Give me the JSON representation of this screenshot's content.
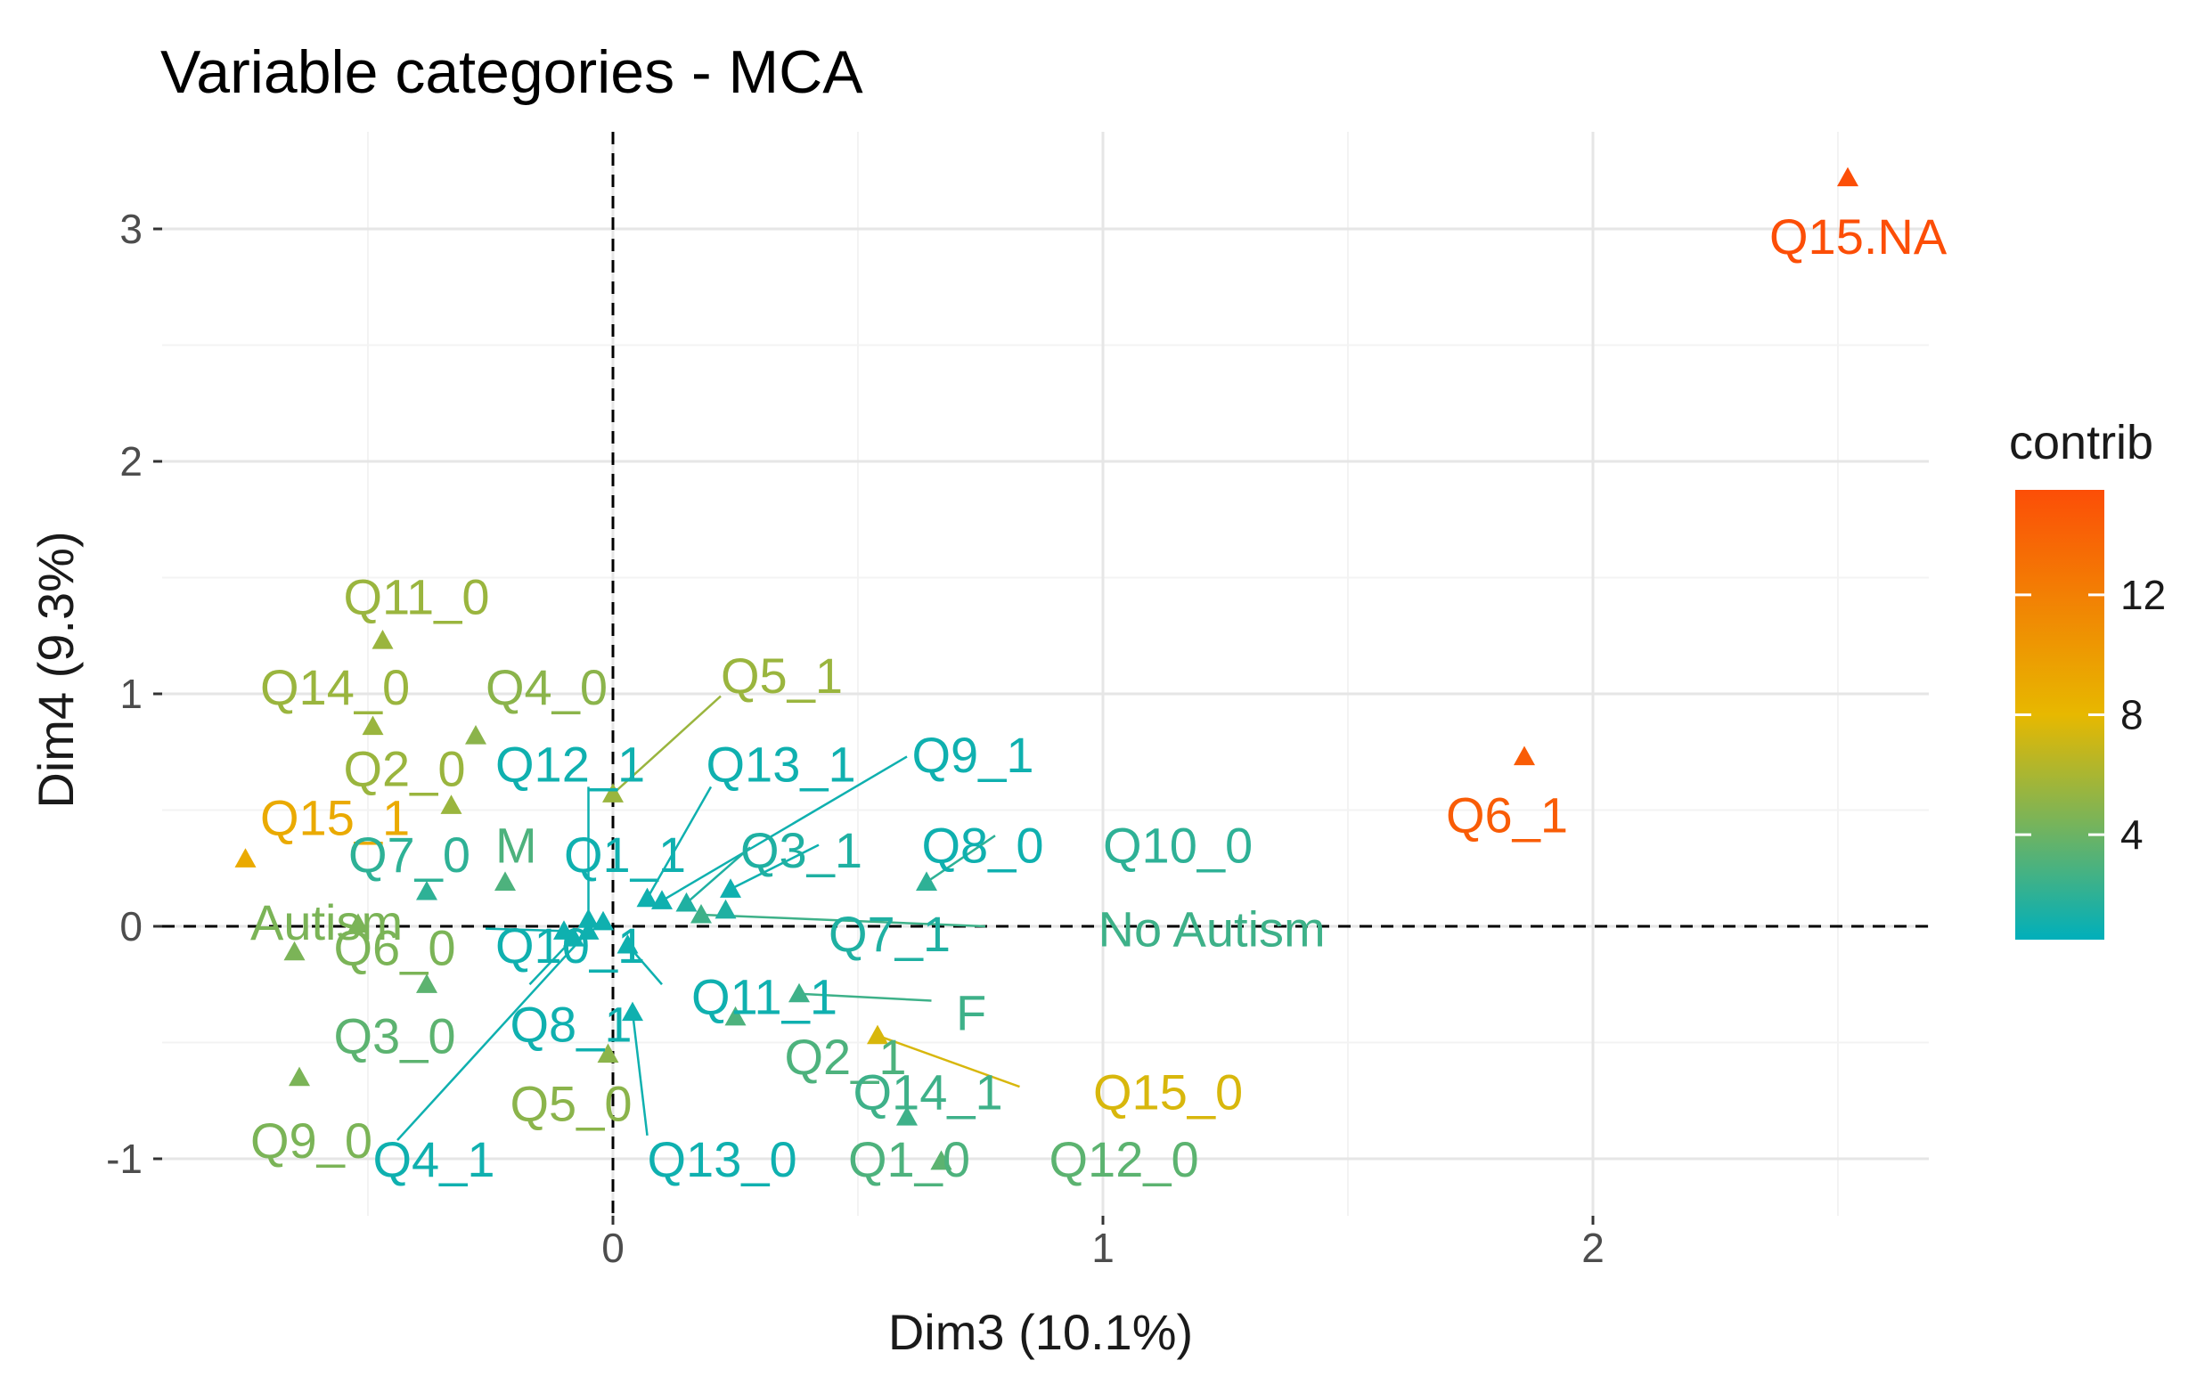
{
  "chart_data": {
    "type": "scatter",
    "title": "Variable categories - MCA",
    "xlabel": "Dim3 (10.1%)",
    "ylabel": "Dim4 (9.3%)",
    "xlim": [
      -0.92,
      2.7
    ],
    "ylim": [
      -1.3,
      3.45
    ],
    "x_ticks": [
      0,
      1,
      2
    ],
    "y_ticks": [
      -1,
      0,
      1,
      2,
      3
    ],
    "grid": true,
    "reference_lines": {
      "x": 0,
      "y": 0
    },
    "legend": {
      "title": "contrib",
      "position": "right",
      "min": 0.5,
      "max": 15.5,
      "ticks": [
        4,
        8,
        12
      ]
    },
    "points": [
      {
        "name": "Q15.NA",
        "x": 2.52,
        "y": 3.22,
        "contrib": 15.5,
        "lx": 2.36,
        "ly": 2.97
      },
      {
        "name": "Q6_1",
        "x": 1.86,
        "y": 0.73,
        "contrib": 14.5,
        "lx": 1.7,
        "ly": 0.48
      },
      {
        "name": "Q11_0",
        "x": -0.47,
        "y": 1.23,
        "contrib": 5.5,
        "lx": -0.55,
        "ly": 1.42
      },
      {
        "name": "Q14_0",
        "x": -0.49,
        "y": 0.86,
        "contrib": 5.5,
        "lx": -0.72,
        "ly": 1.03
      },
      {
        "name": "Q4_0",
        "x": -0.28,
        "y": 0.82,
        "contrib": 5.0,
        "lx": -0.26,
        "ly": 1.03
      },
      {
        "name": "Q5_1",
        "x": 0.0,
        "y": 0.57,
        "contrib": 5.5,
        "lx": 0.22,
        "ly": 1.08
      },
      {
        "name": "Q2_0",
        "x": -0.33,
        "y": 0.52,
        "contrib": 5.5,
        "lx": -0.55,
        "ly": 0.68
      },
      {
        "name": "Q15_1",
        "x": -0.75,
        "y": 0.29,
        "contrib": 9.0,
        "lx": -0.72,
        "ly": 0.47
      },
      {
        "name": "Q7_0",
        "x": -0.38,
        "y": 0.15,
        "contrib": 2.0,
        "lx": -0.54,
        "ly": 0.31
      },
      {
        "name": "M",
        "x": -0.22,
        "y": 0.19,
        "contrib": 3.0,
        "lx": -0.24,
        "ly": 0.35
      },
      {
        "name": "Autism",
        "x": -0.52,
        "y": 0.01,
        "contrib": 4.5,
        "lx": -0.74,
        "ly": 0.02
      },
      {
        "name": "Q6_0",
        "x": -0.65,
        "y": -0.11,
        "contrib": 4.5,
        "lx": -0.57,
        "ly": -0.09
      },
      {
        "name": "Q3_0",
        "x": -0.38,
        "y": -0.25,
        "contrib": 3.5,
        "lx": -0.57,
        "ly": -0.47
      },
      {
        "name": "Q9_0",
        "x": -0.64,
        "y": -0.65,
        "contrib": 4.5,
        "lx": -0.74,
        "ly": -0.92
      },
      {
        "name": "Q12_1",
        "x": -0.05,
        "y": 0.03,
        "contrib": 1.0,
        "lx": -0.24,
        "ly": 0.7
      },
      {
        "name": "Q13_1",
        "x": 0.07,
        "y": 0.12,
        "contrib": 1.0,
        "lx": 0.19,
        "ly": 0.7
      },
      {
        "name": "Q9_1",
        "x": 0.1,
        "y": 0.11,
        "contrib": 1.0,
        "lx": 0.61,
        "ly": 0.74
      },
      {
        "name": "Q1_1",
        "x": -0.02,
        "y": 0.02,
        "contrib": 1.0,
        "lx": -0.1,
        "ly": 0.31
      },
      {
        "name": "Q3_1",
        "x": 0.15,
        "y": 0.1,
        "contrib": 1.5,
        "lx": 0.26,
        "ly": 0.33
      },
      {
        "name": "Q8_0",
        "x": 0.24,
        "y": 0.16,
        "contrib": 1.0,
        "lx": 0.63,
        "ly": 0.35
      },
      {
        "name": "Q10_0",
        "x": 0.64,
        "y": 0.19,
        "contrib": 2.0,
        "lx": 1.0,
        "ly": 0.35
      },
      {
        "name": "Q7_1",
        "x": 0.23,
        "y": 0.07,
        "contrib": 1.5,
        "lx": 0.44,
        "ly": -0.03
      },
      {
        "name": "No Autism",
        "x": 0.18,
        "y": 0.05,
        "contrib": 2.5,
        "lx": 0.99,
        "ly": -0.01
      },
      {
        "name": "Q10_1",
        "x": -0.1,
        "y": -0.02,
        "contrib": 1.0,
        "lx": -0.24,
        "ly": -0.08
      },
      {
        "name": "Q11_1",
        "x": 0.03,
        "y": -0.08,
        "contrib": 1.0,
        "lx": 0.16,
        "ly": -0.3
      },
      {
        "name": "F",
        "x": 0.38,
        "y": -0.29,
        "contrib": 2.5,
        "lx": 0.7,
        "ly": -0.37
      },
      {
        "name": "Q2_1",
        "x": 0.25,
        "y": -0.39,
        "contrib": 3.0,
        "lx": 0.35,
        "ly": -0.56
      },
      {
        "name": "Q15_0",
        "x": 0.54,
        "y": -0.47,
        "contrib": 7.5,
        "lx": 0.98,
        "ly": -0.71
      },
      {
        "name": "Q8_1",
        "x": -0.08,
        "y": -0.05,
        "contrib": 1.0,
        "lx": -0.21,
        "ly": -0.42
      },
      {
        "name": "Q5_0",
        "x": -0.01,
        "y": -0.55,
        "contrib": 5.0,
        "lx": -0.21,
        "ly": -0.76
      },
      {
        "name": "Q14_1",
        "x": 0.6,
        "y": -0.82,
        "contrib": 2.5,
        "lx": 0.49,
        "ly": -0.71
      },
      {
        "name": "Q13_0",
        "x": 0.04,
        "y": -0.37,
        "contrib": 1.0,
        "lx": 0.07,
        "ly": -1.0
      },
      {
        "name": "Q4_1",
        "x": -0.05,
        "y": -0.02,
        "contrib": 1.0,
        "lx": -0.49,
        "ly": -1.0
      },
      {
        "name": "Q1_0",
        "x": 0.67,
        "y": -1.01,
        "contrib": 3.0,
        "lx": 0.48,
        "ly": -1.0
      },
      {
        "name": "Q12_0",
        "x": 0.67,
        "y": -1.01,
        "contrib": 3.5,
        "lx": 0.89,
        "ly": -1.0
      }
    ],
    "connectors": [
      {
        "from": "Q5_1",
        "to": [
          0.22,
          0.99
        ]
      },
      {
        "from": "Q12_1",
        "to": [
          -0.05,
          0.6
        ]
      },
      {
        "from": "Q13_1",
        "to": [
          0.2,
          0.6
        ]
      },
      {
        "from": "Q9_1",
        "to": [
          0.6,
          0.73
        ]
      },
      {
        "from": "Q8_0",
        "to": [
          0.42,
          0.35
        ]
      },
      {
        "from": "Q10_0",
        "to": [
          0.78,
          0.39
        ]
      },
      {
        "from": "No Autism",
        "to": [
          0.76,
          0.0
        ]
      },
      {
        "from": "Q11_1",
        "to": [
          0.1,
          -0.25
        ]
      },
      {
        "from": "F",
        "to": [
          0.65,
          -0.32
        ]
      },
      {
        "from": "Q15_0",
        "to": [
          0.83,
          -0.69
        ]
      },
      {
        "from": "Q13_0",
        "to": [
          0.07,
          -0.9
        ]
      },
      {
        "from": "Q4_1",
        "to": [
          -0.44,
          -0.92
        ]
      },
      {
        "from": "Q8_1",
        "to": [
          -0.17,
          -0.25
        ]
      },
      {
        "from": "Q10_1",
        "to": [
          -0.26,
          -0.01
        ]
      },
      {
        "from": "Q3_1",
        "to": [
          0.28,
          0.34
        ]
      }
    ]
  }
}
